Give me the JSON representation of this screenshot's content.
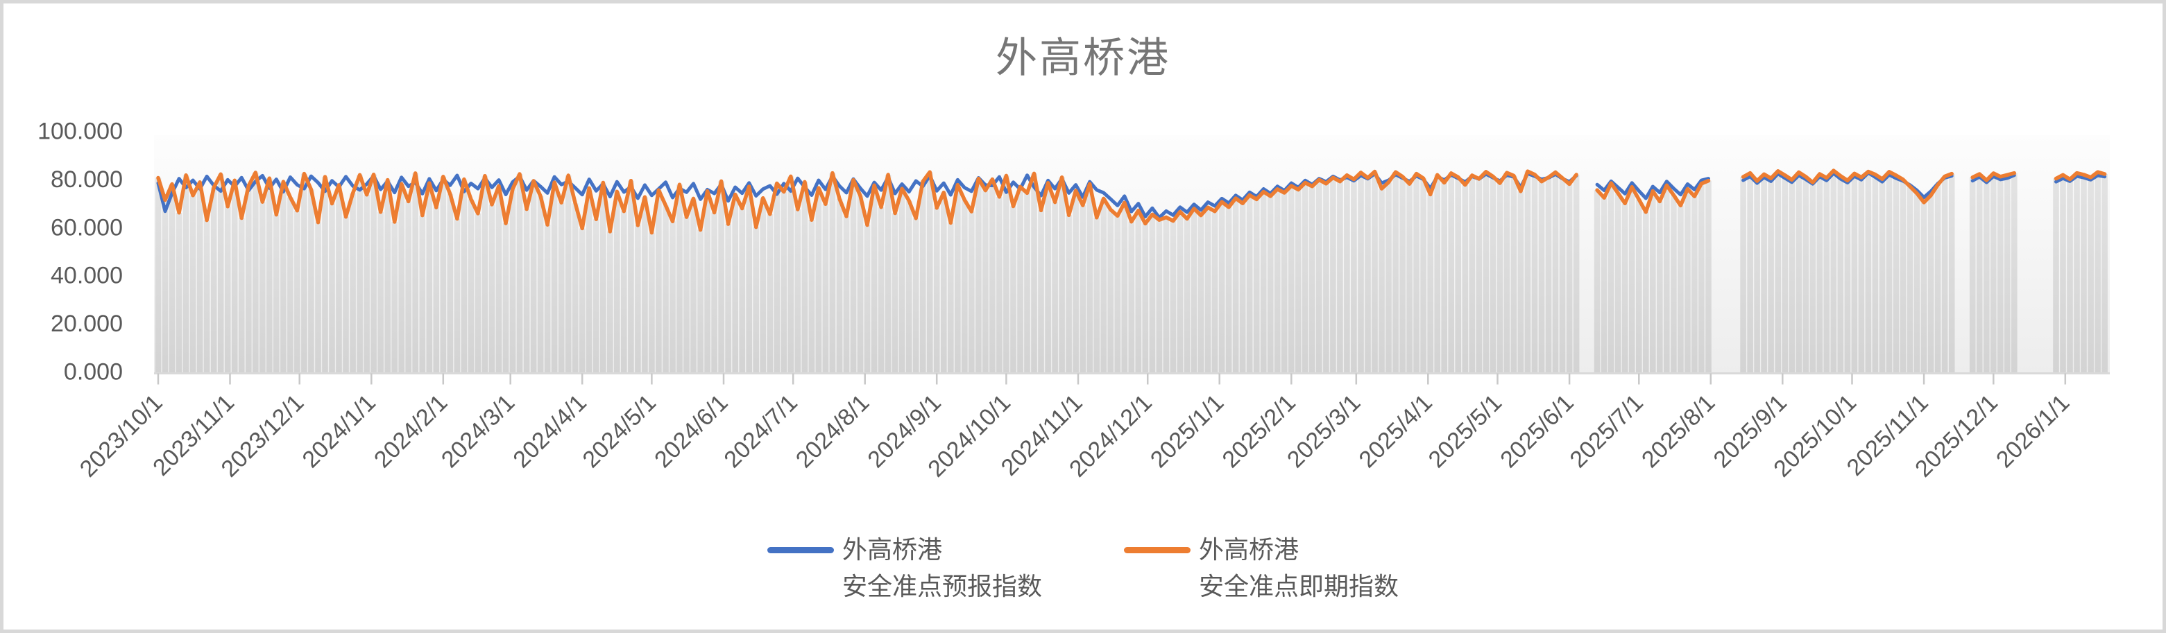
{
  "title": "外高桥港",
  "colors": {
    "forecast_line": "#4472C4",
    "spot_line": "#ED7D31",
    "bar_top": "#E3E3E3",
    "bar_bottom": "#D3D3D3",
    "plot_bg_top": "#FDFDFD",
    "plot_bg_bottom": "#EDEDED",
    "axis_line": "#D9D9D9",
    "tick": "#C8C8C8",
    "axis_text": "#595959",
    "title_text": "#767676"
  },
  "legend": [
    {
      "line1": "外高桥港",
      "line2": "安全准点预报指数",
      "color": "#4472C4"
    },
    {
      "line1": "外高桥港",
      "line2": "安全准点即期指数",
      "color": "#ED7D31"
    }
  ],
  "y_axis": {
    "tick_labels": [
      "100.000",
      "80.000",
      "60.000",
      "40.000",
      "20.000",
      "0.000"
    ],
    "tick_values": [
      100,
      80,
      60,
      40,
      20,
      0
    ]
  },
  "chart_data": {
    "type": "line",
    "title": "外高桥港",
    "xlabel": "",
    "ylabel": "",
    "ylim": [
      0,
      100
    ],
    "y_tick_interval": 20,
    "grid": false,
    "legend_position": "bottom",
    "x_start_date": "2023/10/1",
    "x_step_days": 3,
    "x_tick_labels": [
      "2023/10/1",
      "2023/11/1",
      "2023/12/1",
      "2024/1/1",
      "2024/2/1",
      "2024/3/1",
      "2024/4/1",
      "2024/5/1",
      "2024/6/1",
      "2024/7/1",
      "2024/8/1",
      "2024/9/1",
      "2024/10/1",
      "2024/11/1",
      "2024/12/1",
      "2025/1/1",
      "2025/2/1",
      "2025/3/1",
      "2025/4/1",
      "2025/5/1",
      "2025/6/1",
      "2025/7/1",
      "2025/8/1",
      "2025/9/1",
      "2025/10/1",
      "2025/11/1",
      "2025/12/1",
      "2026/1/1"
    ],
    "x_tick_day_offsets": [
      0,
      31,
      61,
      92,
      123,
      152,
      183,
      213,
      244,
      274,
      305,
      336,
      366,
      397,
      427,
      458,
      489,
      517,
      548,
      578,
      609,
      639,
      670,
      701,
      731,
      762,
      792,
      823
    ],
    "background_columns": {
      "present": true,
      "follows_series": "外高桥港安全准点即期指数"
    },
    "series": [
      {
        "name": "外高桥港安全准点预报指数",
        "color": "#4472C4",
        "values": [
          78.2,
          66.5,
          74.0,
          80.1,
          76.3,
          79.4,
          75.8,
          81.0,
          77.2,
          74.9,
          79.6,
          76.8,
          80.5,
          75.2,
          78.9,
          81.3,
          76.1,
          79.8,
          74.6,
          80.7,
          77.5,
          75.9,
          81.1,
          78.4,
          74.8,
          79.2,
          76.6,
          80.9,
          77.0,
          75.4,
          77.8,
          81.2,
          75.6,
          79.0,
          74.3,
          80.6,
          76.9,
          78.5,
          73.8,
          80.0,
          75.1,
          79.7,
          77.3,
          81.4,
          74.7,
          78.1,
          75.9,
          80.3,
          76.4,
          79.5,
          73.5,
          78.7,
          81.0,
          75.3,
          79.2,
          76.8,
          74.1,
          80.8,
          77.6,
          78.9,
          76.2,
          73.4,
          79.8,
          75.0,
          77.9,
          72.6,
          78.8,
          74.5,
          76.7,
          71.9,
          77.4,
          73.1,
          75.8,
          78.6,
          72.2,
          76.0,
          74.4,
          78.0,
          71.5,
          75.5,
          73.9,
          77.7,
          70.8,
          76.5,
          74.0,
          78.3,
          72.9,
          75.7,
          77.1,
          73.6,
          78.0,
          74.9,
          80.2,
          76.5,
          73.2,
          79.4,
          75.6,
          81.1,
          77.0,
          74.2,
          79.9,
          76.1,
          72.8,
          78.5,
          75.3,
          80.6,
          73.9,
          77.8,
          74.6,
          79.1,
          76.9,
          81.3,
          75.0,
          78.2,
          73.3,
          79.6,
          76.3,
          74.8,
          80.4,
          77.4,
          77.2,
          80.8,
          74.4,
          78.6,
          75.7,
          81.5,
          76.6,
          73.0,
          79.3,
          75.9,
          80.0,
          74.1,
          77.5,
          72.4,
          78.8,
          75.4,
          74.2,
          71.6,
          68.9,
          72.8,
          66.4,
          69.7,
          64.3,
          67.8,
          63.9,
          66.6,
          64.9,
          68.2,
          66.1,
          69.4,
          67.0,
          70.3,
          68.7,
          71.8,
          69.9,
          73.1,
          71.2,
          74.4,
          72.6,
          75.8,
          73.9,
          76.9,
          75.1,
          78.2,
          76.4,
          79.3,
          77.6,
          80.1,
          78.8,
          81.0,
          79.5,
          80.6,
          79.2,
          81.4,
          80.0,
          82.1,
          78.2,
          79.4,
          81.8,
          80.3,
          78.9,
          81.2,
          79.8,
          76.0,
          80.9,
          79.5,
          81.6,
          80.2,
          78.7,
          81.0,
          79.9,
          82.0,
          80.5,
          79.1,
          81.5,
          80.8,
          76.5,
          82.2,
          81.1,
          79.8,
          80.4,
          81.9,
          80.1,
          78.8,
          81.3,
          null,
          null,
          77.6,
          75.2,
          79.0,
          76.4,
          73.8,
          78.3,
          75.0,
          71.9,
          76.8,
          74.3,
          78.9,
          76.0,
          73.4,
          77.8,
          75.5,
          79.4,
          80.1,
          null,
          null,
          null,
          null,
          79.4,
          81.0,
          78.2,
          80.6,
          79.0,
          82.1,
          80.3,
          78.6,
          81.4,
          79.8,
          77.9,
          80.9,
          79.3,
          82.3,
          80.0,
          78.4,
          81.1,
          79.6,
          82.5,
          80.7,
          78.8,
          81.7,
          80.2,
          79.1,
          77.4,
          75.2,
          72.3,
          74.8,
          78.0,
          80.4,
          81.2,
          null,
          null,
          79.2,
          80.8,
          78.5,
          81.0,
          79.7,
          80.3,
          81.5,
          null,
          null,
          null,
          null,
          null,
          78.8,
          80.2,
          79.0,
          81.1,
          80.5,
          79.6,
          81.4,
          80.9
        ]
      },
      {
        "name": "外高桥港安全准点即期指数",
        "color": "#ED7D31",
        "values": [
          80.4,
          71.2,
          77.8,
          65.9,
          81.5,
          73.1,
          78.6,
          62.8,
          76.4,
          81.9,
          68.5,
          79.3,
          63.7,
          77.1,
          82.6,
          70.4,
          80.2,
          65.1,
          78.8,
          72.3,
          66.8,
          82.1,
          75.6,
          61.9,
          80.8,
          69.7,
          77.4,
          64.2,
          74.0,
          81.6,
          73.4,
          81.8,
          66.2,
          79.5,
          62.1,
          77.9,
          70.6,
          82.3,
          64.8,
          78.2,
          68.1,
          80.9,
          73.7,
          63.4,
          79.8,
          71.5,
          65.6,
          81.2,
          69.3,
          77.0,
          61.5,
          75.8,
          82.0,
          67.4,
          79.1,
          72.8,
          60.9,
          78.5,
          70.1,
          81.4,
          69.8,
          59.4,
          76.1,
          63.2,
          78.4,
          58.1,
          74.7,
          66.5,
          79.2,
          60.7,
          72.4,
          57.6,
          75.3,
          68.9,
          62.3,
          77.6,
          64.1,
          71.8,
          58.8,
          74.9,
          66.0,
          79.0,
          61.2,
          73.5,
          67.7,
          76.8,
          59.9,
          72.0,
          65.3,
          78.1,
          74.6,
          81.0,
          67.3,
          78.7,
          62.9,
          76.2,
          69.5,
          82.4,
          71.7,
          64.4,
          79.5,
          73.0,
          60.8,
          77.3,
          68.2,
          81.7,
          65.7,
          75.9,
          70.9,
          63.6,
          78.9,
          82.8,
          67.9,
          74.3,
          61.7,
          77.5,
          71.2,
          66.4,
          80.1,
          75.2,
          79.8,
          72.5,
          81.3,
          68.6,
          76.7,
          74.1,
          82.2,
          66.9,
          78.3,
          70.3,
          80.6,
          64.9,
          75.1,
          69.0,
          77.9,
          63.9,
          71.8,
          67.2,
          64.6,
          70.1,
          62.2,
          66.8,
          61.4,
          65.2,
          62.9,
          64.0,
          62.5,
          66.3,
          63.4,
          67.6,
          64.8,
          68.1,
          66.5,
          70.4,
          68.2,
          71.9,
          69.8,
          73.2,
          71.5,
          74.6,
          72.8,
          75.7,
          74.2,
          77.1,
          75.5,
          78.4,
          76.9,
          79.6,
          78.0,
          80.5,
          78.9,
          81.5,
          79.8,
          82.6,
          80.4,
          83.0,
          75.9,
          78.6,
          82.8,
          80.9,
          77.9,
          82.1,
          80.2,
          73.5,
          81.6,
          78.4,
          82.3,
          80.7,
          77.5,
          81.4,
          80.0,
          82.9,
          81.0,
          78.2,
          82.5,
          81.3,
          74.8,
          83.1,
          81.8,
          78.9,
          80.6,
          82.7,
          80.3,
          77.8,
          81.7,
          null,
          null,
          75.3,
          72.1,
          78.2,
          74.0,
          69.8,
          76.6,
          71.4,
          66.2,
          74.9,
          70.6,
          77.3,
          73.2,
          68.9,
          75.8,
          72.7,
          78.0,
          79.2,
          null,
          null,
          null,
          null,
          80.8,
          82.4,
          79.1,
          81.9,
          80.2,
          83.2,
          81.5,
          79.6,
          82.7,
          80.9,
          78.5,
          82.0,
          80.4,
          83.4,
          81.2,
          79.3,
          82.2,
          80.6,
          83.0,
          81.8,
          79.9,
          82.9,
          81.4,
          79.7,
          76.8,
          73.9,
          70.2,
          73.1,
          77.5,
          81.0,
          82.1,
          null,
          null,
          80.6,
          82.0,
          79.4,
          82.3,
          80.9,
          81.6,
          82.4,
          null,
          null,
          null,
          null,
          null,
          80.1,
          81.6,
          79.8,
          82.4,
          81.7,
          80.6,
          82.8,
          82.0
        ]
      }
    ]
  }
}
